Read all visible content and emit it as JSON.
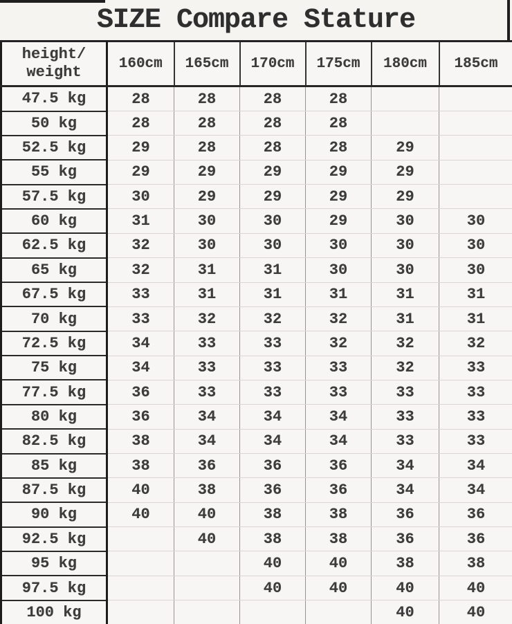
{
  "title": "SIZE Compare Stature",
  "chart_data": {
    "type": "table",
    "title": "SIZE Compare Stature",
    "corner_header": {
      "line1": "height/",
      "line2": "weight"
    },
    "columns": [
      "160cm",
      "165cm",
      "170cm",
      "175cm",
      "180cm",
      "185cm"
    ],
    "rows": [
      {
        "weight": "47.5 kg",
        "values": [
          "28",
          "28",
          "28",
          "28",
          "",
          ""
        ]
      },
      {
        "weight": "50 kg",
        "values": [
          "28",
          "28",
          "28",
          "28",
          "",
          ""
        ]
      },
      {
        "weight": "52.5 kg",
        "values": [
          "29",
          "28",
          "28",
          "28",
          "29",
          ""
        ]
      },
      {
        "weight": "55 kg",
        "values": [
          "29",
          "29",
          "29",
          "29",
          "29",
          ""
        ]
      },
      {
        "weight": "57.5 kg",
        "values": [
          "30",
          "29",
          "29",
          "29",
          "29",
          ""
        ]
      },
      {
        "weight": "60 kg",
        "values": [
          "31",
          "30",
          "30",
          "29",
          "30",
          "30"
        ]
      },
      {
        "weight": "62.5 kg",
        "values": [
          "32",
          "30",
          "30",
          "30",
          "30",
          "30"
        ]
      },
      {
        "weight": "65 kg",
        "values": [
          "32",
          "31",
          "31",
          "30",
          "30",
          "30"
        ]
      },
      {
        "weight": "67.5 kg",
        "values": [
          "33",
          "31",
          "31",
          "31",
          "31",
          "31"
        ]
      },
      {
        "weight": "70 kg",
        "values": [
          "33",
          "32",
          "32",
          "32",
          "31",
          "31"
        ]
      },
      {
        "weight": "72.5 kg",
        "values": [
          "34",
          "33",
          "33",
          "32",
          "32",
          "32"
        ]
      },
      {
        "weight": "75 kg",
        "values": [
          "34",
          "33",
          "33",
          "33",
          "32",
          "33"
        ]
      },
      {
        "weight": "77.5 kg",
        "values": [
          "36",
          "33",
          "33",
          "33",
          "33",
          "33"
        ]
      },
      {
        "weight": "80 kg",
        "values": [
          "36",
          "34",
          "34",
          "34",
          "33",
          "33"
        ]
      },
      {
        "weight": "82.5 kg",
        "values": [
          "38",
          "34",
          "34",
          "34",
          "33",
          "33"
        ]
      },
      {
        "weight": "85 kg",
        "values": [
          "38",
          "36",
          "36",
          "36",
          "34",
          "34"
        ]
      },
      {
        "weight": "87.5 kg",
        "values": [
          "40",
          "38",
          "36",
          "36",
          "34",
          "34"
        ]
      },
      {
        "weight": "90 kg",
        "values": [
          "40",
          "40",
          "38",
          "38",
          "36",
          "36"
        ]
      },
      {
        "weight": "92.5 kg",
        "values": [
          "",
          "40",
          "38",
          "38",
          "36",
          "36"
        ]
      },
      {
        "weight": "95 kg",
        "values": [
          "",
          "",
          "40",
          "40",
          "38",
          "38"
        ]
      },
      {
        "weight": "97.5 kg",
        "values": [
          "",
          "",
          "40",
          "40",
          "40",
          "40"
        ]
      },
      {
        "weight": "100 kg",
        "values": [
          "",
          "",
          "",
          "",
          "40",
          "40"
        ]
      }
    ]
  },
  "colors": {
    "background": "#f5f4f1",
    "cell_background": "#f7f6f4",
    "text": "#3c3c3c",
    "heavy_border": "#1c1c1c",
    "medium_border": "#979490",
    "light_border": "#d9d6d1"
  }
}
